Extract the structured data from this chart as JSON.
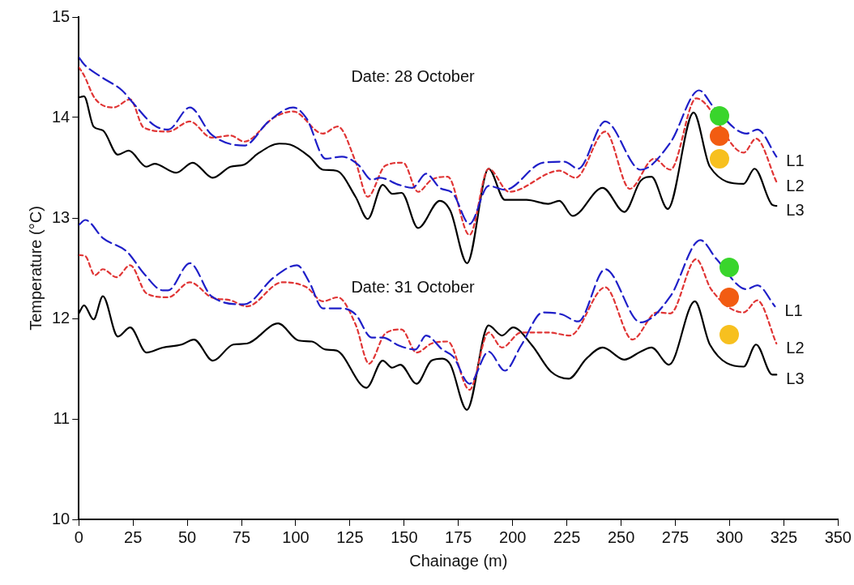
{
  "chart_data": {
    "type": "line",
    "xlabel": "Chainage (m)",
    "ylabel": "Temperature (°C)",
    "xlim": [
      0,
      350
    ],
    "xticks": [
      0,
      25,
      50,
      75,
      100,
      125,
      150,
      175,
      200,
      225,
      250,
      275,
      300,
      325,
      350
    ],
    "ylim": [
      10,
      15
    ],
    "yticks": [
      10,
      11,
      12,
      13,
      14,
      15
    ],
    "grid": false,
    "legend": false,
    "marker": "none",
    "annotations": [
      "Date: 28 October",
      "Date: 31 October"
    ],
    "series": [
      {
        "name": "L1",
        "color": "#1f1fc8",
        "line_style": "dashed",
        "x": [
          0,
          2.4,
          9.9,
          19.9,
          24.8,
          34.9,
          41.2,
          51.2,
          61.2,
          76.2,
          87.5,
          98.8,
          105,
          113.8,
          121.3,
          128.8,
          135,
          138.8,
          147.6,
          153.8,
          160.1,
          166.4,
          172.6,
          180.1,
          188.9,
          196.4,
          213.9,
          223.9,
          230.2,
          242.7,
          259,
          272.7,
          285.9,
          292.8,
          307.8,
          312.8,
          321.6
        ],
        "values": [
          14.6,
          14.53,
          14.41,
          14.27,
          14.15,
          13.92,
          13.88,
          14.1,
          13.83,
          13.72,
          13.96,
          14.1,
          13.99,
          13.59,
          13.61,
          13.53,
          13.38,
          13.4,
          13.33,
          13.3,
          13.44,
          13.3,
          13.24,
          12.94,
          13.32,
          13.28,
          13.55,
          13.56,
          13.49,
          13.96,
          13.48,
          13.75,
          14.27,
          14.1,
          13.84,
          13.88,
          13.61
        ]
      },
      {
        "name": "L2",
        "color": "#e03535",
        "line_style": "dotted",
        "x": [
          0,
          2.4,
          7.4,
          16.1,
          23.7,
          29.9,
          41.2,
          51.2,
          61.2,
          70,
          76.2,
          90,
          98.8,
          112.5,
          119.4,
          127.6,
          133.2,
          141.3,
          149.5,
          156.4,
          162.6,
          170.1,
          180.1,
          188.9,
          198.4,
          221.5,
          229,
          242.7,
          254,
          265.2,
          272.7,
          284.6,
          306.5,
          312.2,
          321.6
        ],
        "values": [
          14.5,
          14.42,
          14.19,
          14.1,
          14.18,
          13.9,
          13.86,
          13.96,
          13.8,
          13.82,
          13.76,
          14.0,
          14.06,
          13.84,
          13.91,
          13.56,
          13.21,
          13.52,
          13.55,
          13.26,
          13.38,
          13.41,
          12.83,
          13.49,
          13.26,
          13.47,
          13.4,
          13.86,
          13.29,
          13.59,
          13.48,
          14.19,
          13.65,
          13.79,
          13.36
        ]
      },
      {
        "name": "L3",
        "color": "#000000",
        "line_style": "solid",
        "x": [
          0,
          2.4,
          6.8,
          11.2,
          18,
          23,
          31.2,
          34.9,
          44.9,
          52.5,
          61.8,
          70,
          76.2,
          82.5,
          92.5,
          97.5,
          106.3,
          112.5,
          118.8,
          127.6,
          133.2,
          140.1,
          144.5,
          148.8,
          156.4,
          166.4,
          171.3,
          179,
          188.9,
          196.4,
          206.4,
          216.4,
          221.5,
          227.7,
          241.5,
          251.5,
          259,
          264,
          271.5,
          283.4,
          290.9,
          306.5,
          311.5,
          319.7,
          321.6
        ],
        "values": [
          14.2,
          14.21,
          13.91,
          13.87,
          13.63,
          13.67,
          13.51,
          13.54,
          13.45,
          13.55,
          13.4,
          13.51,
          13.53,
          13.64,
          13.74,
          13.73,
          13.61,
          13.48,
          13.47,
          13.21,
          12.99,
          13.33,
          13.24,
          13.25,
          12.9,
          13.17,
          13.07,
          12.55,
          13.49,
          13.18,
          13.18,
          13.14,
          13.17,
          13.02,
          13.3,
          13.06,
          13.37,
          13.41,
          13.09,
          14.05,
          13.51,
          13.34,
          13.49,
          13.13,
          13.12
        ]
      },
      {
        "name": "L1",
        "color": "#1f1fc8",
        "line_style": "dashed",
        "x": [
          0,
          3,
          11.1,
          22.4,
          29.9,
          38.7,
          41.2,
          51.2,
          61.2,
          76.2,
          90,
          100.6,
          106.3,
          112.5,
          121.3,
          127.6,
          135,
          140.1,
          147.6,
          155.1,
          160.1,
          167.6,
          172.6,
          180.1,
          188.9,
          196.4,
          203.9,
          213.9,
          222.6,
          230.2,
          242.7,
          259,
          272.7,
          286.5,
          294,
          307.8,
          312.8,
          320.9
        ],
        "values": [
          12.93,
          12.98,
          12.8,
          12.66,
          12.45,
          12.28,
          12.28,
          12.55,
          12.22,
          12.14,
          12.41,
          12.53,
          12.36,
          12.1,
          12.1,
          12.04,
          11.81,
          11.81,
          11.73,
          11.69,
          11.83,
          11.69,
          11.62,
          11.35,
          11.67,
          11.48,
          11.73,
          12.06,
          12.04,
          11.97,
          12.49,
          11.96,
          12.22,
          12.78,
          12.59,
          12.29,
          12.33,
          12.12
        ]
      },
      {
        "name": "L2",
        "color": "#e03535",
        "line_style": "dotted",
        "x": [
          0,
          3,
          7.4,
          11.1,
          17.4,
          23.7,
          31.2,
          41.2,
          51.2,
          61.2,
          70,
          77.5,
          93.8,
          105,
          112.5,
          119.4,
          127.6,
          133.8,
          141.3,
          148.8,
          155.7,
          162.6,
          170.1,
          180.1,
          188.9,
          195.1,
          203.9,
          216.4,
          226.4,
          242.7,
          255.2,
          266.5,
          272.7,
          284.6,
          291.5,
          306.5,
          312.8,
          321.6
        ],
        "values": [
          12.63,
          12.62,
          12.43,
          12.49,
          12.41,
          12.53,
          12.25,
          12.21,
          12.36,
          12.21,
          12.18,
          12.12,
          12.36,
          12.31,
          12.17,
          12.21,
          11.94,
          11.55,
          11.85,
          11.89,
          11.66,
          11.75,
          11.77,
          11.29,
          11.86,
          11.71,
          11.86,
          11.86,
          11.83,
          12.31,
          11.79,
          12.06,
          12.05,
          12.59,
          12.29,
          12.06,
          12.18,
          11.75
        ]
      },
      {
        "name": "L3",
        "color": "#000000",
        "line_style": "solid",
        "x": [
          0,
          2.4,
          6.8,
          11.1,
          18,
          23.7,
          31.2,
          38.7,
          47.4,
          53.1,
          61.8,
          71.2,
          77.5,
          91.9,
          101.3,
          107.5,
          113.8,
          118.8,
          132.6,
          140.1,
          144.5,
          148.2,
          155.7,
          162.6,
          167.6,
          171.3,
          178.9,
          188.9,
          195.1,
          200.2,
          209,
          217.7,
          225.8,
          234,
          241.5,
          251.5,
          259,
          264,
          272.1,
          284,
          290.9,
          306.5,
          312.2,
          319.7,
          321.6
        ],
        "values": [
          12.05,
          12.13,
          11.99,
          12.22,
          11.82,
          11.91,
          11.66,
          11.71,
          11.74,
          11.79,
          11.58,
          11.74,
          11.75,
          11.95,
          11.78,
          11.77,
          11.69,
          11.68,
          11.31,
          11.58,
          11.51,
          11.54,
          11.35,
          11.58,
          11.6,
          11.54,
          11.09,
          11.93,
          11.83,
          11.91,
          11.73,
          11.47,
          11.4,
          11.6,
          11.71,
          11.59,
          11.67,
          11.71,
          11.54,
          12.17,
          11.74,
          11.52,
          11.74,
          11.44,
          11.44
        ]
      }
    ]
  }
}
